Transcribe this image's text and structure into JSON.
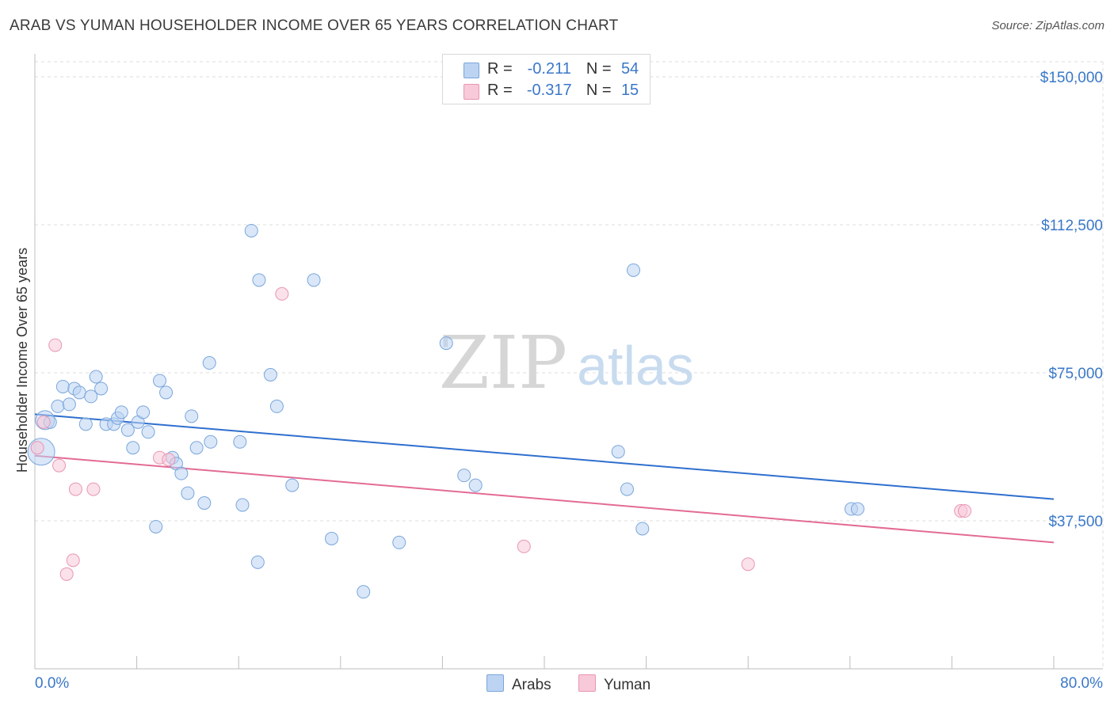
{
  "title": "ARAB VS YUMAN HOUSEHOLDER INCOME OVER 65 YEARS CORRELATION CHART",
  "source": "Source: ZipAtlas.com",
  "watermark": {
    "zip": "ZIP",
    "atlas": "atlas"
  },
  "legend": {
    "r_label": "R =",
    "n_label": "N =",
    "rows": [
      {
        "name": "Arabs",
        "r": "-0.211",
        "n": "54",
        "fill": "#bcd4f2",
        "stroke": "#7aa6dc"
      },
      {
        "name": "Yuman",
        "r": "-0.317",
        "n": "15",
        "fill": "#f8c9d8",
        "stroke": "#e996b3"
      }
    ]
  },
  "bottom_legend": {
    "arabs": "Arabs",
    "yuman": "Yuman"
  },
  "chart_data": {
    "type": "scatter",
    "title": "ARAB VS YUMAN HOUSEHOLDER INCOME OVER 65 YEARS CORRELATION CHART",
    "xlabel": "",
    "ylabel": "Householder Income Over 65 years",
    "xlim": [
      0,
      80
    ],
    "ylim": [
      0,
      155000
    ],
    "x_tick_labels": [
      "0.0%",
      "80.0%"
    ],
    "y_ticks": [
      37500,
      75000,
      112500,
      150000
    ],
    "y_tick_labels": [
      "$37,500",
      "$75,000",
      "$112,500",
      "$150,000"
    ],
    "colors": {
      "arabs_line": "#2f6fce",
      "yuman_line": "#e36b95",
      "tick_text": "#3a78c9",
      "grid": "#dddddd"
    },
    "series": [
      {
        "name": "Arabs",
        "points": [
          [
            0.5,
            55000
          ],
          [
            0.8,
            63000
          ],
          [
            1.2,
            62500
          ],
          [
            1.8,
            66500
          ],
          [
            2.2,
            71500
          ],
          [
            2.7,
            67000
          ],
          [
            3.1,
            71000
          ],
          [
            3.5,
            70000
          ],
          [
            4.0,
            62000
          ],
          [
            4.4,
            69000
          ],
          [
            4.8,
            74000
          ],
          [
            5.2,
            71000
          ],
          [
            5.6,
            62000
          ],
          [
            6.2,
            62000
          ],
          [
            6.5,
            63500
          ],
          [
            6.8,
            65000
          ],
          [
            7.3,
            60500
          ],
          [
            7.7,
            56000
          ],
          [
            8.1,
            62500
          ],
          [
            8.5,
            65000
          ],
          [
            8.9,
            60000
          ],
          [
            9.5,
            36000
          ],
          [
            9.8,
            73000
          ],
          [
            10.3,
            70000
          ],
          [
            10.8,
            53500
          ],
          [
            11.1,
            52000
          ],
          [
            11.5,
            49500
          ],
          [
            12.0,
            44500
          ],
          [
            12.3,
            64000
          ],
          [
            12.7,
            56000
          ],
          [
            13.3,
            42000
          ],
          [
            13.7,
            77500
          ],
          [
            13.8,
            57500
          ],
          [
            16.1,
            57500
          ],
          [
            16.3,
            41500
          ],
          [
            17.0,
            111000
          ],
          [
            17.5,
            27000
          ],
          [
            17.6,
            98500
          ],
          [
            18.5,
            74500
          ],
          [
            19.0,
            66500
          ],
          [
            20.2,
            46500
          ],
          [
            21.9,
            98500
          ],
          [
            23.3,
            33000
          ],
          [
            25.8,
            19500
          ],
          [
            28.6,
            32000
          ],
          [
            32.3,
            82500
          ],
          [
            33.7,
            49000
          ],
          [
            34.6,
            46500
          ],
          [
            45.8,
            55000
          ],
          [
            46.5,
            45500
          ],
          [
            47.0,
            101000
          ],
          [
            47.7,
            35500
          ],
          [
            64.1,
            40500
          ],
          [
            64.6,
            40500
          ]
        ]
      },
      {
        "name": "Yuman",
        "points": [
          [
            0.2,
            56000
          ],
          [
            0.7,
            62500
          ],
          [
            1.6,
            82000
          ],
          [
            1.9,
            51500
          ],
          [
            2.5,
            24000
          ],
          [
            3.0,
            27500
          ],
          [
            3.2,
            45500
          ],
          [
            4.6,
            45500
          ],
          [
            9.8,
            53500
          ],
          [
            10.5,
            53000
          ],
          [
            19.4,
            95000
          ],
          [
            38.4,
            31000
          ],
          [
            56.0,
            26500
          ],
          [
            72.7,
            40000
          ],
          [
            73.0,
            40000
          ]
        ]
      }
    ],
    "trend_lines": [
      {
        "name": "Arabs",
        "x": [
          0,
          80
        ],
        "y": [
          64500,
          43000
        ]
      },
      {
        "name": "Yuman",
        "x": [
          0,
          80
        ],
        "y": [
          54000,
          32000
        ]
      }
    ]
  }
}
